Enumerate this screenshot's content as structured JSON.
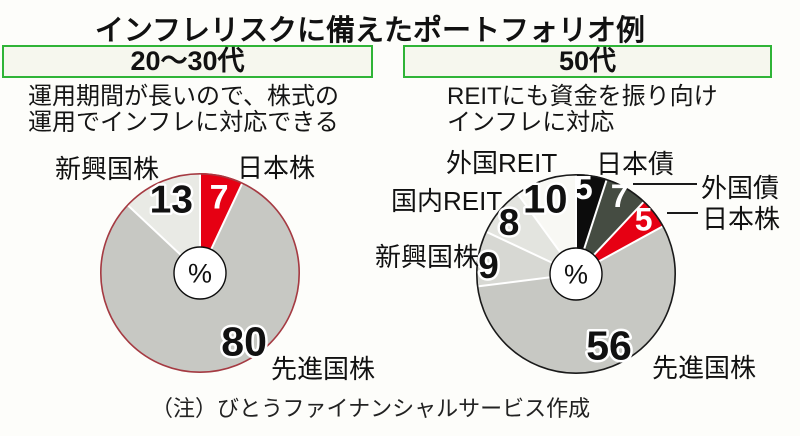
{
  "title": "インフレリスクに備えたポートフォリオ例",
  "note": "（注）びとうファイナンシャルサービス作成",
  "colors": {
    "header_border_green": "#2fb437",
    "header_box_bg": "#f6f7ee",
    "accent_red": "#e60013",
    "left_pie_outline": "#a63a42",
    "right_pie_outline": "#1a1a1a"
  },
  "panels": [
    {
      "age_label": "20〜30代",
      "description_line1": "運用期間が長いので、株式の",
      "description_line2": "運用でインフレに対応できる"
    },
    {
      "age_label": "50代",
      "description_line1": "REITにも資金を振り向け",
      "description_line2": "インフレに対応"
    }
  ],
  "chart_data": [
    {
      "type": "pie",
      "title": "20〜30代",
      "unit": "%",
      "center_label": "%",
      "start_angle_deg": 0,
      "direction": "clockwise",
      "outline_color": "#a63a42",
      "slices": [
        {
          "name": "日本株",
          "value": 7,
          "color": "#e60013",
          "num_color": "#ffffff",
          "num_angle": 14,
          "num_r": 0.79,
          "num_size": 34
        },
        {
          "name": "先進国株",
          "value": 80,
          "color": "#c7c8c3",
          "num_color": "#111111",
          "num_angle": 147,
          "num_r": 0.81,
          "num_size": 41
        },
        {
          "name": "新興国株",
          "value": 13,
          "color": "#e9eae5",
          "num_color": "#111111",
          "num_angle": 339,
          "num_r": 0.8,
          "num_size": 39
        }
      ]
    },
    {
      "type": "pie",
      "title": "50代",
      "unit": "%",
      "center_label": "%",
      "start_angle_deg": 0,
      "direction": "clockwise",
      "outline_color": "#1a1a1a",
      "slices": [
        {
          "name": "日本債",
          "value": 5,
          "color": "#0c0c0c",
          "num_color": "#ffffff",
          "num_angle": 5,
          "num_r": 0.87,
          "num_size": 33
        },
        {
          "name": "外国債",
          "value": 7,
          "color": "#454c42",
          "num_color": "#ffffff",
          "num_angle": 29,
          "num_r": 0.9,
          "num_size": 32
        },
        {
          "name": "日本株",
          "value": 5,
          "color": "#e60013",
          "num_color": "#ffffff",
          "num_angle": 51,
          "num_r": 0.87,
          "num_size": 32
        },
        {
          "name": "先進国株",
          "value": 56,
          "color": "#c7c8c3",
          "num_color": "#111111",
          "num_angle": 155,
          "num_r": 0.78,
          "num_size": 41
        },
        {
          "name": "新興国株",
          "value": 9,
          "color": "#d7d8d3",
          "num_color": "#111111",
          "num_angle": 276,
          "num_r": 0.88,
          "num_size": 37
        },
        {
          "name": "国内REIT",
          "value": 8,
          "color": "#e3e4df",
          "num_color": "#111111",
          "num_angle": 308,
          "num_r": 0.85,
          "num_size": 37
        },
        {
          "name": "外国REIT",
          "value": 10,
          "color": "#f8f8f4",
          "num_color": "#111111",
          "num_angle": 338,
          "num_r": 0.82,
          "num_size": 40
        }
      ]
    }
  ]
}
